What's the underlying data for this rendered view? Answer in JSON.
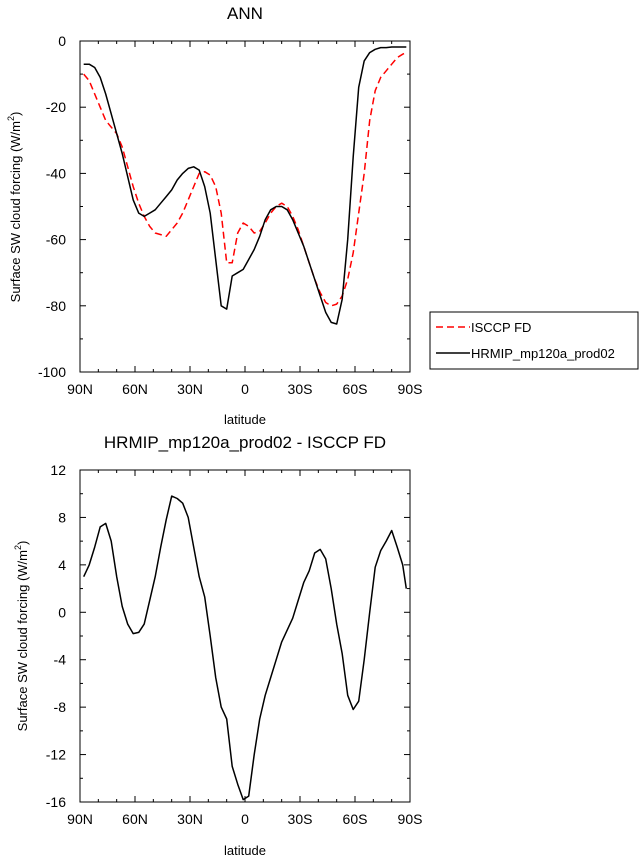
{
  "chart_data": [
    {
      "type": "line",
      "title": "ANN",
      "xlabel": "latitude",
      "ylabel": "Surface SW cloud forcing (W/m",
      "ylabel_sup": "2",
      "ylabel_close": ")",
      "xlim": [
        90,
        -90
      ],
      "ylim": [
        -100,
        0
      ],
      "x_ticks": [
        90,
        60,
        30,
        0,
        -30,
        -60,
        -90
      ],
      "x_tick_labels": [
        "90N",
        "60N",
        "30N",
        "0",
        "30S",
        "60S",
        "90S"
      ],
      "y_ticks": [
        0,
        -20,
        -40,
        -60,
        -80,
        -100
      ],
      "y_tick_labels": [
        "0",
        "-20",
        "-40",
        "-60",
        "-80",
        "-100"
      ],
      "legend_position": "right",
      "series": [
        {
          "name": "ISCCP FD",
          "color": "#ff0000",
          "dash": "dashed",
          "x": [
            88,
            85,
            82,
            79,
            76,
            73,
            70,
            67,
            64,
            61,
            58,
            55,
            52,
            49,
            46,
            43,
            40,
            37,
            34,
            31,
            28,
            25,
            22,
            19,
            16,
            13,
            10,
            7,
            4,
            1,
            -2,
            -5,
            -8,
            -11,
            -14,
            -17,
            -20,
            -23,
            -26,
            -29,
            -32,
            -35,
            -38,
            -41,
            -44,
            -47,
            -50,
            -53,
            -56,
            -59,
            -62,
            -65,
            -68,
            -71,
            -74,
            -77,
            -80,
            -83,
            -86,
            -88
          ],
          "y": [
            -10,
            -12,
            -16,
            -20,
            -24,
            -26,
            -28,
            -32,
            -38,
            -44,
            -49,
            -53,
            -56,
            -58,
            -58.5,
            -59,
            -57,
            -55,
            -52,
            -48,
            -44,
            -40,
            -39.5,
            -40.5,
            -44,
            -52,
            -67,
            -67,
            -58,
            -55,
            -56,
            -58,
            -57.5,
            -55,
            -52,
            -50,
            -49,
            -50,
            -53,
            -57,
            -62,
            -67,
            -72,
            -76,
            -79,
            -80,
            -79.5,
            -77,
            -72,
            -64,
            -52,
            -40,
            -24,
            -15,
            -11,
            -9,
            -7,
            -5,
            -4,
            -3.5
          ]
        },
        {
          "name": "HRMIP_mp120a_prod02",
          "color": "#000000",
          "dash": "solid",
          "x": [
            88,
            85,
            82,
            79,
            76,
            73,
            70,
            67,
            64,
            61,
            58,
            55,
            52,
            49,
            46,
            43,
            40,
            37,
            34,
            31,
            28,
            25,
            22,
            19,
            16,
            13,
            10,
            7,
            4,
            1,
            -2,
            -5,
            -8,
            -11,
            -14,
            -17,
            -20,
            -23,
            -26,
            -29,
            -32,
            -35,
            -38,
            -41,
            -44,
            -47,
            -50,
            -53,
            -56,
            -59,
            -62,
            -65,
            -68,
            -71,
            -74,
            -77,
            -80,
            -83,
            -86,
            -88
          ],
          "y": [
            -7,
            -7,
            -8,
            -11,
            -16,
            -22,
            -28,
            -34,
            -41,
            -48,
            -52,
            -53,
            -52,
            -51,
            -49,
            -47,
            -45,
            -42,
            -40,
            -38.5,
            -38,
            -39,
            -44,
            -52,
            -66,
            -80,
            -81,
            -71,
            -70,
            -69,
            -66,
            -63,
            -59,
            -54,
            -51,
            -50,
            -50,
            -51,
            -54,
            -58,
            -62,
            -67,
            -72,
            -77,
            -82,
            -85,
            -85.5,
            -78,
            -60,
            -35,
            -14,
            -6,
            -3.5,
            -2.5,
            -2,
            -2,
            -1.8,
            -1.8,
            -1.8,
            -1.8
          ]
        }
      ]
    },
    {
      "type": "line",
      "title": "HRMIP_mp120a_prod02 - ISCCP FD",
      "xlabel": "latitude",
      "ylabel": "Surface SW cloud forcing (W/m",
      "ylabel_sup": "2",
      "ylabel_close": ")",
      "xlim": [
        90,
        -90
      ],
      "ylim": [
        -16,
        12
      ],
      "x_ticks": [
        90,
        60,
        30,
        0,
        -30,
        -60,
        -90
      ],
      "x_tick_labels": [
        "90N",
        "60N",
        "30N",
        "0",
        "30S",
        "60S",
        "90S"
      ],
      "y_ticks": [
        12,
        8,
        4,
        0,
        -4,
        -8,
        -12,
        -16
      ],
      "y_tick_labels": [
        "12",
        "8",
        "4",
        "0",
        "-4",
        "-8",
        "-12",
        "-16"
      ],
      "series": [
        {
          "color": "#000000",
          "dash": "solid",
          "x": [
            88,
            85,
            82,
            79,
            76,
            73,
            70,
            67,
            64,
            61,
            58,
            55,
            52,
            49,
            46,
            43,
            40,
            37,
            34,
            31,
            28,
            25,
            22,
            19,
            16,
            13,
            10,
            7,
            4,
            1,
            -2,
            -5,
            -8,
            -11,
            -14,
            -17,
            -20,
            -23,
            -26,
            -29,
            -32,
            -35,
            -38,
            -41,
            -44,
            -47,
            -50,
            -53,
            -56,
            -59,
            -62,
            -65,
            -68,
            -71,
            -74,
            -77,
            -80,
            -83,
            -86,
            -88
          ],
          "y": [
            3,
            4,
            5.5,
            7.2,
            7.5,
            6,
            3,
            0.5,
            -1,
            -1.8,
            -1.7,
            -1,
            1,
            3,
            5.5,
            7.8,
            9.8,
            9.6,
            9.2,
            8,
            5.5,
            3,
            1.3,
            -2,
            -5.5,
            -8,
            -9,
            -13,
            -14.5,
            -15.8,
            -15.5,
            -12,
            -9,
            -7,
            -5.5,
            -4,
            -2.5,
            -1.5,
            -0.5,
            1,
            2.5,
            3.5,
            5,
            5.3,
            4.5,
            2,
            -1,
            -3.5,
            -7,
            -8.2,
            -7.5,
            -4,
            0,
            3.8,
            5.2,
            6,
            6.9,
            5.5,
            4,
            2
          ]
        }
      ]
    }
  ]
}
